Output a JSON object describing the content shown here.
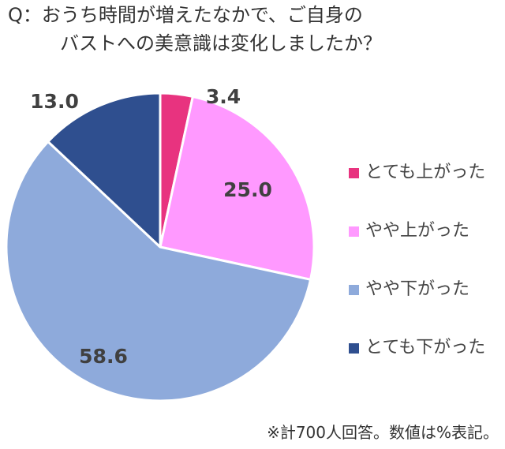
{
  "question": {
    "line1": "Q：おうち時間が増えたなかで、ご自身の",
    "line2": "バストへの美意識は変化しましたか？"
  },
  "footnote": "※計700人回答。数値は%表記。",
  "chart_data": {
    "type": "pie",
    "start": "12 o'clock, clockwise",
    "slices": [
      {
        "name": "とても上がった",
        "value": 3.4,
        "label": "3.4",
        "color": "#e8337f"
      },
      {
        "name": "やや上がった",
        "value": 25.0,
        "label": "25.0",
        "color": "#ff99ff"
      },
      {
        "name": "やや下がった",
        "value": 58.6,
        "label": "58.6",
        "color": "#8eaadb"
      },
      {
        "name": "とても下がった",
        "value": 13.0,
        "label": "13.0",
        "color": "#2f4f8f"
      }
    ],
    "legend_position": "right",
    "label_color": "#404040"
  }
}
